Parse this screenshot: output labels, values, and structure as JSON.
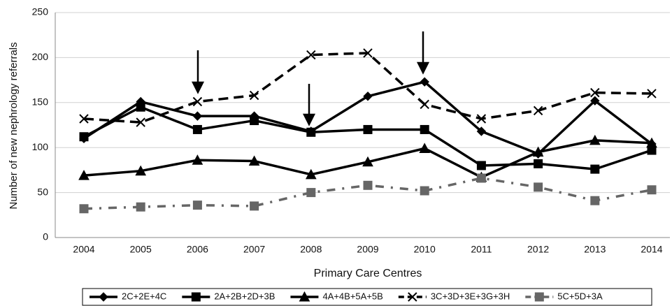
{
  "chart_data": {
    "type": "line",
    "x_label": "Primary Care Centres",
    "y_label": "Number of new nephrology referrals",
    "categories": [
      "2004",
      "2005",
      "2006",
      "2007",
      "2008",
      "2009",
      "2010",
      "2011",
      "2012",
      "2013",
      "2014"
    ],
    "ylim": [
      0,
      250
    ],
    "yticks": [
      0,
      50,
      100,
      150,
      200,
      250
    ],
    "grid": true,
    "legend": "bottom",
    "series": [
      {
        "name": "2C+2E+4C",
        "color": "#000000",
        "marker": "diamond",
        "dash": "solid",
        "values": [
          110,
          151,
          135,
          135,
          118,
          157,
          173,
          118,
          93,
          152,
          104
        ]
      },
      {
        "name": "2A+2B+2D+3B",
        "color": "#000000",
        "marker": "square",
        "dash": "solid",
        "values": [
          112,
          145,
          120,
          130,
          117,
          120,
          120,
          80,
          82,
          76,
          97
        ]
      },
      {
        "name": "4A+4B+5A+5B",
        "color": "#000000",
        "marker": "triangle",
        "dash": "solid",
        "values": [
          69,
          74,
          86,
          85,
          70,
          84,
          99,
          67,
          95,
          108,
          105
        ]
      },
      {
        "name": "3C+3D+3E+3G+3H",
        "color": "#000000",
        "marker": "x",
        "dash": "dashed",
        "values": [
          132,
          128,
          151,
          158,
          203,
          205,
          148,
          132,
          141,
          161,
          160
        ]
      },
      {
        "name": "5C+5D+3A",
        "color": "#666666",
        "marker": "square",
        "dash": "dashdot",
        "values": [
          32,
          34,
          36,
          35,
          50,
          58,
          52,
          66,
          56,
          41,
          53
        ]
      }
    ]
  }
}
